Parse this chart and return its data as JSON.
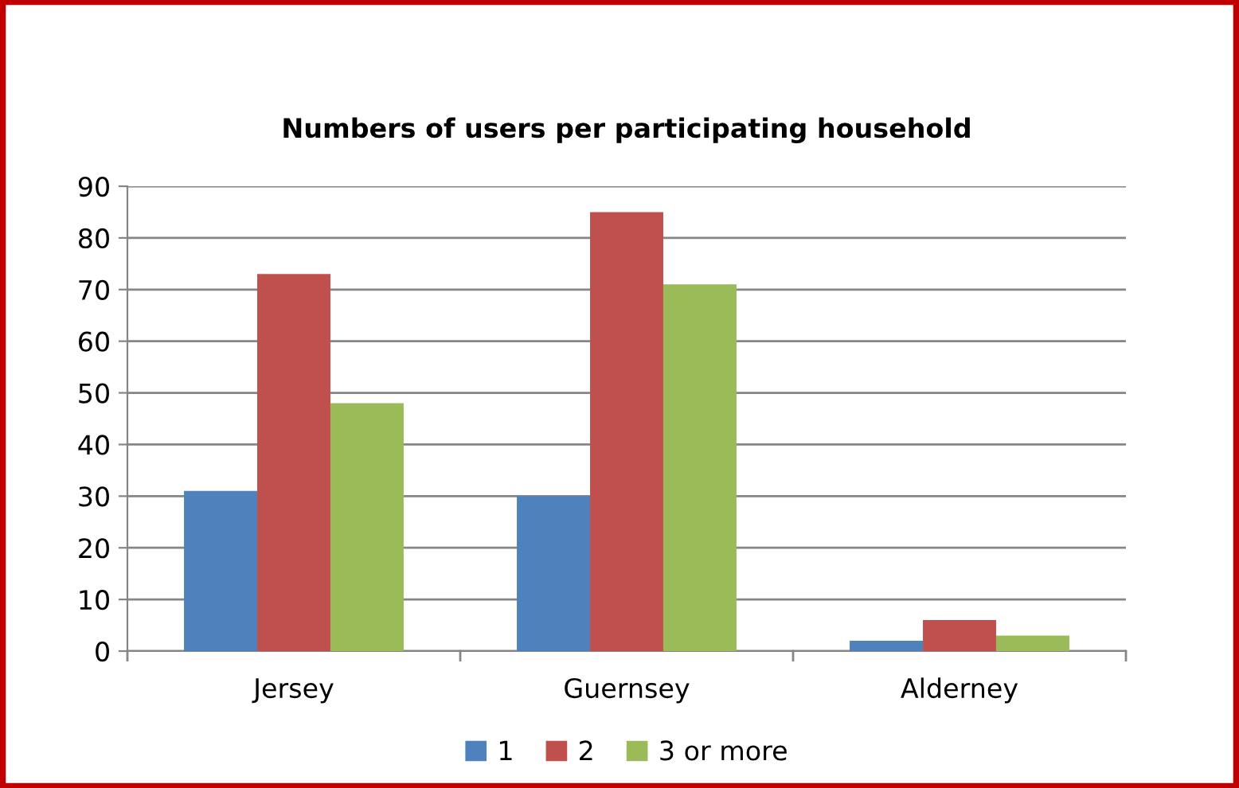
{
  "chart_data": {
    "type": "bar",
    "title": "Numbers of users per participating household",
    "categories": [
      "Jersey",
      "Guernsey",
      "Alderney"
    ],
    "series": [
      {
        "name": "1",
        "color": "#4f81bd",
        "values": [
          31,
          30,
          2
        ]
      },
      {
        "name": "2",
        "color": "#c0504d",
        "values": [
          73,
          85,
          6
        ]
      },
      {
        "name": "3 or more",
        "color": "#9bbb59",
        "values": [
          48,
          71,
          3
        ]
      }
    ],
    "ylim": [
      0,
      90
    ],
    "yticks": [
      0,
      10,
      20,
      30,
      40,
      50,
      60,
      70,
      80,
      90
    ],
    "grid": "y",
    "legend": "bottom"
  }
}
